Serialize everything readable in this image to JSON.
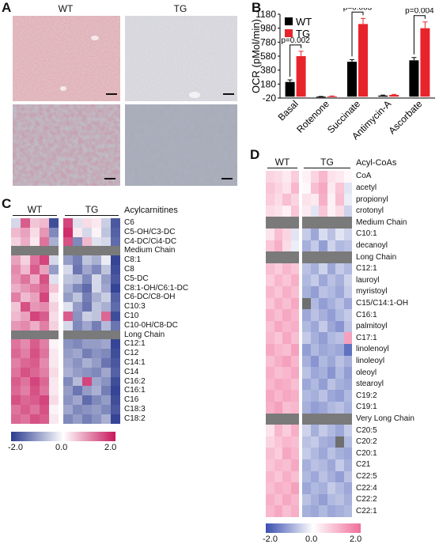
{
  "panels": {
    "A": "A",
    "B": "B",
    "C": "C",
    "D": "D"
  },
  "panelA": {
    "col_labels": [
      "WT",
      "TG"
    ],
    "images": [
      {
        "name": "wt-low-mag",
        "tint": "#d9a9ae"
      },
      {
        "name": "tg-low-mag",
        "tint": "#cfcfd6"
      },
      {
        "name": "wt-high-mag",
        "tint": "#b98893"
      },
      {
        "name": "tg-high-mag",
        "tint": "#9ea3b2"
      }
    ]
  },
  "chart_data": {
    "type": "bar",
    "categories": [
      "Basal",
      "Rotenone",
      "Succinate",
      "Antimycin-A",
      "Ascorbate"
    ],
    "series": [
      {
        "name": "WT",
        "color": "#000000",
        "values": [
          210,
          0,
          500,
          15,
          520
        ],
        "errors": [
          30,
          3,
          30,
          8,
          40
        ]
      },
      {
        "name": "TG",
        "color": "#e8242b",
        "values": [
          580,
          5,
          1040,
          25,
          980
        ],
        "errors": [
          70,
          5,
          80,
          8,
          90
        ]
      }
    ],
    "ylabel": "OCR (pMol/min)",
    "ylim": [
      -20,
      1180
    ],
    "yticks": [
      -20,
      180,
      380,
      580,
      780,
      980,
      1180
    ],
    "legend": "top-left",
    "significance": [
      {
        "category": "Basal",
        "label": "p=0.002"
      },
      {
        "category": "Succinate",
        "label": "p=0.003"
      },
      {
        "category": "Ascorbate",
        "label": "p=0.004"
      }
    ]
  },
  "heatmapC": {
    "groups": [
      "WT",
      "TG"
    ],
    "header": "Acylcarnitines",
    "rows": [
      {
        "label": "C6",
        "v": [
          -0.4,
          1.4,
          0.5,
          0.6,
          -1.8,
          1.6,
          -0.3,
          0.3,
          0.2,
          -0.5,
          -1.7
        ]
      },
      {
        "label": "C5-OH/C3-DC",
        "v": [
          0.6,
          0.8,
          0.3,
          0.9,
          -1.2,
          1.8,
          0.2,
          -0.4,
          0.1,
          -0.6,
          -1.6
        ]
      },
      {
        "label": "C4-DC/Ci4-DC",
        "v": [
          0.4,
          0.7,
          0.2,
          1.2,
          -0.8,
          1.5,
          -1.2,
          0.6,
          -0.3,
          -0.4,
          -1.5
        ]
      },
      {
        "label": "Medium Chain",
        "sep": true
      },
      {
        "label": "C8:1",
        "v": [
          0.8,
          0.4,
          1.2,
          1.6,
          -0.4,
          -1.0,
          -1.3,
          -0.6,
          -0.8,
          -0.2,
          -1.9
        ]
      },
      {
        "label": "C8",
        "v": [
          1.0,
          0.6,
          1.4,
          0.8,
          -1.0,
          -0.4,
          -1.4,
          -0.9,
          -1.2,
          -0.6,
          -1.8
        ]
      },
      {
        "label": "C5-DC",
        "v": [
          0.9,
          1.2,
          0.7,
          1.5,
          -0.3,
          -0.6,
          -0.7,
          -1.2,
          -0.4,
          -1.0,
          -1.7
        ]
      },
      {
        "label": "C8:1-OH/C6:1-DC",
        "v": [
          0.7,
          0.9,
          1.1,
          1.3,
          0.5,
          -0.8,
          -1.2,
          -1.5,
          -0.4,
          -0.9,
          -1.9
        ]
      },
      {
        "label": "C6-DC/C8-OH",
        "v": [
          1.1,
          0.6,
          0.8,
          1.6,
          0.2,
          -1.0,
          -0.6,
          -1.3,
          -0.8,
          -0.5,
          -1.6
        ]
      },
      {
        "label": "C10:3",
        "v": [
          0.5,
          1.5,
          0.9,
          1.0,
          0.4,
          -0.3,
          -1.0,
          -1.4,
          -0.6,
          -0.8,
          -1.5
        ]
      },
      {
        "label": "C10",
        "v": [
          0.6,
          0.8,
          1.6,
          1.4,
          0.3,
          1.4,
          -1.1,
          -0.5,
          -0.6,
          1.3,
          -1.8
        ]
      },
      {
        "label": "C10-0H/C8-DC",
        "v": [
          0.9,
          1.0,
          0.7,
          1.1,
          0.4,
          -0.4,
          -1.2,
          -0.9,
          -1.3,
          -0.7,
          -1.4
        ]
      },
      {
        "label": "Long Chain",
        "sep": true
      },
      {
        "label": "C12:1",
        "v": [
          1.2,
          1.0,
          1.4,
          1.1,
          0.1,
          -1.1,
          -1.2,
          -1.0,
          -1.0,
          -0.9,
          -1.9
        ]
      },
      {
        "label": "C12",
        "v": [
          1.3,
          1.1,
          1.5,
          1.2,
          0.2,
          -1.0,
          -0.9,
          -1.3,
          -1.1,
          -1.2,
          -1.8
        ]
      },
      {
        "label": "C14:1",
        "v": [
          1.1,
          1.3,
          1.4,
          1.0,
          0.2,
          -0.9,
          -1.1,
          -0.8,
          -1.0,
          -1.4,
          -1.7
        ]
      },
      {
        "label": "C14",
        "v": [
          1.2,
          1.5,
          1.3,
          1.1,
          0.3,
          -0.8,
          -1.0,
          -1.1,
          -1.2,
          -0.9,
          -1.6
        ]
      },
      {
        "label": "C16:2",
        "v": [
          1.4,
          1.2,
          1.6,
          1.3,
          0.2,
          -1.2,
          -0.7,
          1.6,
          -0.9,
          -1.1,
          -1.8
        ]
      },
      {
        "label": "C16:1",
        "v": [
          1.3,
          1.1,
          1.5,
          1.2,
          0.2,
          -1.0,
          -1.4,
          -1.0,
          -0.8,
          -1.3,
          -1.9
        ]
      },
      {
        "label": "C16",
        "v": [
          1.5,
          1.3,
          1.4,
          1.6,
          0.3,
          -1.1,
          -0.9,
          -1.5,
          -1.2,
          -1.0,
          -1.8
        ]
      },
      {
        "label": "C18:3",
        "v": [
          1.2,
          1.4,
          1.2,
          1.5,
          0.1,
          -0.9,
          -1.2,
          -1.1,
          -1.0,
          -1.2,
          -1.7
        ]
      },
      {
        "label": "C18:2",
        "v": [
          1.3,
          1.2,
          1.5,
          1.4,
          0.2,
          -1.2,
          -1.0,
          -1.3,
          -1.1,
          -0.8,
          -1.9
        ]
      }
    ],
    "legend": {
      "min": "-2.0",
      "mid": "0.0",
      "max": "2.0"
    }
  },
  "heatmapD": {
    "groups": [
      "WT",
      "TG"
    ],
    "header": "Acyl-CoAs",
    "rows": [
      {
        "label": "CoA",
        "v": [
          0.6,
          0.5,
          0.3,
          0.7,
          0.2,
          0.6,
          1.0,
          0.4,
          0.3,
          0.1
        ]
      },
      {
        "label": "acetyl",
        "v": [
          0.8,
          0.6,
          0.4,
          1.0,
          0.1,
          0.9,
          1.2,
          0.3,
          0.8,
          -0.3
        ]
      },
      {
        "label": "propionyl",
        "v": [
          0.7,
          0.5,
          0.9,
          0.6,
          0.4,
          0.3,
          1.1,
          0.2,
          0.9,
          -0.2
        ]
      },
      {
        "label": "crotonyl",
        "v": [
          0.5,
          0.4,
          0.2,
          0.8,
          0.3,
          -0.3,
          0.8,
          0.2,
          0.5,
          -0.5
        ]
      },
      {
        "label": "Medium Chain",
        "sep": true
      },
      {
        "label": "C10:1",
        "v": [
          0.4,
          0.9,
          0.6,
          -0.3,
          -0.6,
          -1.0,
          -0.4,
          -0.7,
          -0.3,
          -0.5
        ]
      },
      {
        "label": "decanoyl",
        "v": [
          0.8,
          1.1,
          0.5,
          -0.2,
          -0.9,
          -0.6,
          -1.1,
          -0.5,
          -0.8,
          -0.7
        ]
      },
      {
        "label": "Long Chain",
        "sep": true
      },
      {
        "label": "C12:1",
        "v": [
          0.9,
          0.7,
          1.0,
          0.8,
          -0.7,
          -0.9,
          -0.5,
          -1.0,
          -0.6,
          -0.8
        ]
      },
      {
        "label": "lauroyl",
        "v": [
          0.7,
          1.0,
          0.8,
          1.1,
          -0.8,
          -0.6,
          -1.0,
          -0.7,
          -0.9,
          -0.5
        ]
      },
      {
        "label": "myristoyl",
        "v": [
          1.0,
          0.8,
          1.1,
          0.9,
          -0.9,
          -1.1,
          -0.7,
          -0.8,
          -1.0,
          -0.6
        ]
      },
      {
        "label": "C15/C14:1-OH",
        "v": [
          0.8,
          1.1,
          0.9,
          1.2,
          null,
          -0.8,
          -1.1,
          -0.9,
          -0.7,
          -1.0
        ]
      },
      {
        "label": "C16:1",
        "v": [
          1.1,
          0.9,
          1.2,
          1.0,
          -1.0,
          -0.7,
          -0.9,
          -1.1,
          -0.8,
          -0.6
        ]
      },
      {
        "label": "palmitoyl",
        "v": [
          0.9,
          1.2,
          1.0,
          1.1,
          -0.8,
          -1.0,
          -0.6,
          -1.0,
          -1.2,
          -0.7
        ]
      },
      {
        "label": "C17:1",
        "v": [
          1.0,
          0.8,
          1.2,
          0.9,
          -0.6,
          -0.9,
          -1.1,
          -0.8,
          -0.7,
          1.3
        ]
      },
      {
        "label": "linolenoyl",
        "v": [
          1.2,
          1.0,
          0.9,
          1.3,
          -1.1,
          -0.8,
          -1.0,
          -0.9,
          -1.0,
          -1.6
        ]
      },
      {
        "label": "linoleoyl",
        "v": [
          0.9,
          1.1,
          1.3,
          1.0,
          -0.9,
          -1.2,
          -0.8,
          -1.0,
          -0.7,
          -0.9
        ]
      },
      {
        "label": "oleoyl",
        "v": [
          1.1,
          0.9,
          1.0,
          1.2,
          -0.7,
          -1.0,
          -0.9,
          -1.2,
          -0.8,
          -1.1
        ]
      },
      {
        "label": "stearoyl",
        "v": [
          1.0,
          1.2,
          1.1,
          0.9,
          -1.0,
          -0.8,
          -1.1,
          -0.7,
          -0.9,
          -1.0
        ]
      },
      {
        "label": "C19:2",
        "v": [
          1.2,
          1.0,
          1.2,
          1.1,
          -0.8,
          -0.9,
          -0.7,
          -1.0,
          -1.1,
          -0.8
        ]
      },
      {
        "label": "C19:1",
        "v": [
          1.1,
          1.3,
          0.9,
          1.0,
          -0.9,
          -1.1,
          -1.0,
          -0.8,
          -0.7,
          -0.9
        ]
      },
      {
        "label": "Very Long Chain",
        "sep": true
      },
      {
        "label": "C20:5",
        "v": [
          0.4,
          1.0,
          0.7,
          1.1,
          -0.5,
          -0.9,
          -0.6,
          -0.8,
          -1.0,
          -0.6
        ]
      },
      {
        "label": "C20:2",
        "v": [
          0.6,
          0.8,
          1.0,
          0.9,
          -0.7,
          -0.6,
          -0.9,
          -1.0,
          null,
          -0.8
        ]
      },
      {
        "label": "C20:1",
        "v": [
          0.9,
          0.7,
          1.2,
          1.0,
          -0.6,
          -0.8,
          -1.0,
          -0.7,
          -0.9,
          -1.0
        ]
      },
      {
        "label": "C21",
        "v": [
          0.8,
          1.0,
          0.9,
          1.2,
          -0.9,
          -0.7,
          -0.8,
          -1.0,
          -0.6,
          -0.9
        ]
      },
      {
        "label": "C22:5",
        "v": [
          1.0,
          0.8,
          1.1,
          0.9,
          -0.8,
          -1.0,
          -0.7,
          -0.9,
          -1.1,
          -0.7
        ]
      },
      {
        "label": "C22:4",
        "v": [
          0.9,
          1.1,
          1.0,
          1.3,
          -1.0,
          -0.8,
          -0.9,
          -0.6,
          -0.8,
          -1.0
        ]
      },
      {
        "label": "C22:2",
        "v": [
          1.1,
          0.9,
          1.2,
          1.0,
          -0.7,
          -0.9,
          -1.1,
          -0.8,
          -0.7,
          -0.9
        ]
      },
      {
        "label": "C22:1",
        "v": [
          1.0,
          1.2,
          0.9,
          1.1,
          -0.9,
          -1.0,
          -0.8,
          -1.0,
          -0.9,
          -0.8
        ]
      }
    ],
    "legend": {
      "min": "-2.0",
      "mid": "0.0",
      "max": "2.0"
    }
  },
  "colors": {
    "low": "#2b3a8f",
    "mid": "#ffffff",
    "high": "#c8175b",
    "separator": "#7a7a7a",
    "missing": "#6f6f6f"
  }
}
